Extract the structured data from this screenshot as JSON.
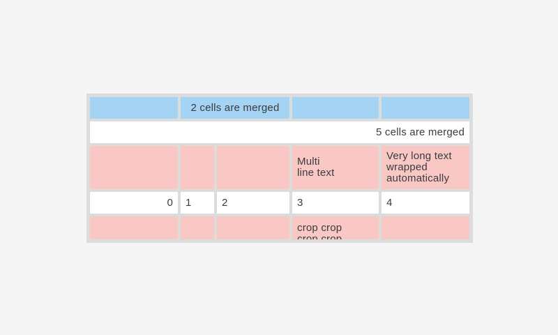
{
  "page": {
    "background_color": "#f5f5f5"
  },
  "table": {
    "colors": {
      "grid_gray": "#dcdcdc",
      "header_blue": "#a5d3f3",
      "highlight_pink": "#f9c8c5",
      "plain_white": "#ffffff",
      "text": "#3b3b3b"
    },
    "row1": {
      "merged_cell": "2 cells are merged"
    },
    "row2": {
      "merged_cell": "5 cells are merged"
    },
    "row3": {
      "cell4": "Multi\nline text",
      "cell5": "Very long text wrapped automatically"
    },
    "row4": {
      "col1": "0",
      "col2": "1",
      "col3": "2",
      "col4": "3",
      "col5": "4"
    },
    "row5": {
      "cell4": "crop crop\ncrop crop"
    }
  }
}
